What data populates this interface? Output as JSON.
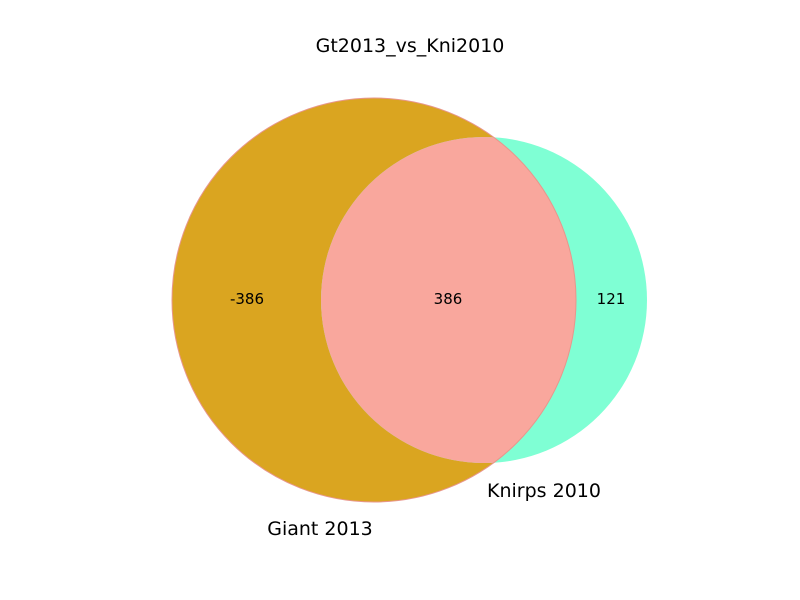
{
  "title": "Gt2013_vs_Kni2010",
  "sets": {
    "a": {
      "label": "Giant 2013",
      "color": "#DAA520"
    },
    "b": {
      "label": "Knirps 2010",
      "color": "#7FFFD4"
    }
  },
  "overlap_color": "#F9A79D",
  "regions": {
    "a_only": "-386",
    "both": "386",
    "b_only": "121"
  }
}
